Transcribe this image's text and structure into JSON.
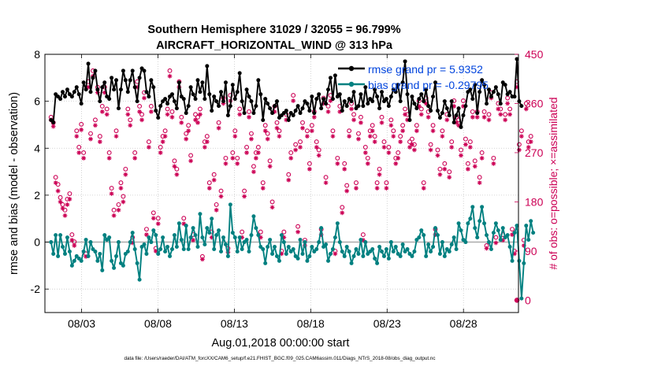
{
  "chart_data": {
    "type": "line",
    "title": "Southern Hemisphere 31029 / 32055 = 96.799%",
    "subtitle": "AIRCRAFT_HORIZONTAL_WIND @ 313 hPa",
    "xlabel": "Aug.01,2018 00:00:00 start",
    "ylabel": "rmse and bias (model - observation)",
    "ylabel_right": "# of obs: o=possible; ×=assimilated",
    "footer": "data file: /Users/raeder/DAI/ATM_forcXX/CAM6_setup/f.e21.FHIST_BGC.f09_025.CAM6assim.011/Diags_NTrS_2018-08/obs_diag_output.nc",
    "xlim": [
      0.6,
      31.6
    ],
    "ylim": [
      -3,
      8
    ],
    "ylim_right": [
      -22.5,
      450
    ],
    "x_ticks": [
      3,
      8,
      13,
      18,
      23,
      28
    ],
    "x_tick_labels": [
      "08/03",
      "08/08",
      "08/13",
      "08/18",
      "08/23",
      "08/28"
    ],
    "y_ticks": [
      -2,
      0,
      2,
      4,
      6,
      8
    ],
    "y_tick_labels": [
      "-2",
      "0",
      "2",
      "4",
      "6",
      "8"
    ],
    "y_ticks_right": [
      0,
      90,
      180,
      270,
      360,
      450
    ],
    "y_tick_labels_right": [
      "0",
      "90",
      "180",
      "270",
      "360",
      "450"
    ],
    "zero_line": 0,
    "legend_position": "top-right",
    "colors": {
      "rmse": "#000000",
      "bias": "#008080",
      "obs": "#cc0055",
      "legend_text": "#0044dd",
      "zero_line": "#aaaaaa"
    },
    "series": [
      {
        "name": "rmse",
        "label": "rmse grand pr = 5.9352",
        "axis": "left",
        "values": [
          5.2,
          5.1,
          6.3,
          6.2,
          6.1,
          6.4,
          6.2,
          6.5,
          6.3,
          6.2,
          6.4,
          6.6,
          6.3,
          5.9,
          6.8,
          6.5,
          7.6,
          6.4,
          7.0,
          7.3,
          6.5,
          6.0,
          6.6,
          6.8,
          6.2,
          6.1,
          7.0,
          6.5,
          6.9,
          5.7,
          6.5,
          7.3,
          6.9,
          6.4,
          6.9,
          7.3,
          6.6,
          6.0,
          7.0,
          7.4,
          7.3,
          6.4,
          6.2,
          6.9,
          6.6,
          5.6,
          5.3,
          5.8,
          6.0,
          6.1,
          5.9,
          6.2,
          6.3,
          6.0,
          5.7,
          6.8,
          6.2,
          6.1,
          5.5,
          5.8,
          6.6,
          6.3,
          6.1,
          6.9,
          6.4,
          6.8,
          6.1,
          7.5,
          6.3,
          5.6,
          6.2,
          6.0,
          5.8,
          6.4,
          6.0,
          6.8,
          5.4,
          5.8,
          6.7,
          6.1,
          6.4,
          7.2,
          6.0,
          5.5,
          6.5,
          6.2,
          6.0,
          5.5,
          5.8,
          6.9,
          6.3,
          5.2,
          6.1,
          5.9,
          5.7,
          5.5,
          5.8,
          6.0,
          5.3,
          5.4,
          5.5,
          5.6,
          5.2,
          5.5,
          5.4,
          5.6,
          5.8,
          5.5,
          5.7,
          6.0,
          5.9,
          5.6,
          6.2,
          5.5,
          6.1,
          6.3,
          5.7,
          6.1,
          5.9,
          6.5,
          7.0,
          6.1,
          7.1,
          6.2,
          6.3,
          5.6,
          6.0,
          5.8,
          6.1,
          6.0,
          6.4,
          5.7,
          5.8,
          6.3,
          5.8,
          6.6,
          5.9,
          6.1,
          6.0,
          6.5,
          6.2,
          5.7,
          6.4,
          6.0,
          6.1,
          5.8,
          6.2,
          6.5,
          6.4,
          6.7,
          6.0,
          6.8,
          7.7,
          6.3,
          5.2,
          6.2,
          5.9,
          5.7,
          6.1,
          6.3,
          6.0,
          6.5,
          5.8,
          5.6,
          6.2,
          6.8,
          5.6,
          5.3,
          5.5,
          6.0,
          5.7,
          5.4,
          6.0,
          5.1,
          5.4,
          5.7,
          4.9,
          5.4,
          5.8,
          6.4,
          6.5,
          6.1,
          6.7,
          5.5,
          6.4,
          6.9,
          6.7,
          5.9,
          6.5,
          6.2,
          6.4,
          6.6,
          6.3,
          5.9,
          6.8,
          6.7,
          6.3,
          6.4,
          6.2,
          6.2,
          7.8,
          6.0,
          5.8
        ]
      },
      {
        "name": "bias",
        "label": "bias grand pr = -0.29795",
        "axis": "left",
        "values": [
          0.0,
          -0.5,
          0.3,
          -0.6,
          0.3,
          -0.2,
          -0.5,
          0.2,
          -0.4,
          -1.0,
          -0.8,
          -0.6,
          -0.7,
          -0.8,
          -0.4,
          0.1,
          -0.6,
          0.0,
          -0.3,
          -0.4,
          -0.8,
          -0.5,
          -1.2,
          0.3,
          0.1,
          0.2,
          -0.8,
          -1.1,
          -0.6,
          0.0,
          -0.9,
          -1.0,
          -0.5,
          -0.4,
          0.0,
          0.4,
          -0.3,
          -0.9,
          -1.6,
          -0.2,
          -0.1,
          -0.5,
          0.2,
          0.0,
          0.5,
          0.3,
          -0.5,
          -0.3,
          0.2,
          -0.4,
          -0.2,
          -0.6,
          -0.3,
          0.3,
          -0.2,
          0.8,
          0.1,
          -0.3,
          0.7,
          -0.3,
          0.2,
          0.6,
          0.3,
          -0.2,
          1.2,
          0.2,
          -0.1,
          0.6,
          0.4,
          1.0,
          -0.3,
          0.3,
          0.5,
          -0.4,
          0.2,
          -0.1,
          -0.6,
          1.6,
          0.4,
          0.2,
          -0.4,
          0.2,
          -0.3,
          0.0,
          0.1,
          -0.4,
          0.3,
          1.1,
          0.6,
          0.3,
          -0.2,
          -0.3,
          -0.9,
          -0.2,
          0.1,
          -0.5,
          -0.2,
          -0.6,
          -0.8,
          0.3,
          0.0,
          -0.5,
          -0.2,
          -0.4,
          -0.3,
          -0.6,
          -0.7,
          0.1,
          -0.5,
          0.0,
          -0.8,
          -0.6,
          -0.2,
          -0.4,
          -0.3,
          0.0,
          0.6,
          -0.2,
          -0.1,
          -0.8,
          -0.5,
          -0.3,
          0.2,
          0.8,
          0.0,
          -0.4,
          -0.6,
          -0.2,
          -0.4,
          -0.9,
          -0.6,
          -0.3,
          -0.5,
          0.1,
          -0.6,
          0.0,
          -0.5,
          -0.4,
          -0.3,
          -0.7,
          -0.9,
          -0.2,
          -0.4,
          -0.6,
          -0.3,
          -0.7,
          0.0,
          -0.4,
          -0.2,
          -0.5,
          -0.6,
          -0.1,
          -0.4,
          -0.3,
          -0.5,
          -0.6,
          -0.4,
          0.1,
          0.2,
          0.5,
          0.3,
          -0.6,
          -0.1,
          -0.4,
          -0.2,
          0.6,
          0.3,
          -0.5,
          0.0,
          -0.6,
          -0.3,
          -0.4,
          -0.1,
          0.2,
          -0.3,
          0.8,
          0.5,
          0.1,
          0.0,
          0.8,
          1.0,
          1.5,
          0.6,
          0.2,
          0.9,
          1.5,
          0.8,
          0.3,
          0.0,
          -0.3,
          0.4,
          0.8,
          0.5,
          0.1,
          0.6,
          0.2,
          0.3,
          -0.2,
          -0.8,
          0.4,
          0.7,
          -0.8,
          -2.4,
          -0.9,
          0.7,
          0.1,
          0.9,
          0.4
        ]
      },
      {
        "name": "obs_possible",
        "label": "o=possible",
        "axis": "right",
        "values": [
          335,
          325,
          225,
          212,
          188,
          175,
          165,
          185,
          195,
          120,
          107,
          310,
          280,
          322,
          270,
          85,
          400,
          305,
          420,
          330,
          390,
          300,
          355,
          390,
          350,
          270,
          205,
          165,
          310,
          175,
          215,
          190,
          240,
          350,
          330,
          115,
          270,
          400,
          355,
          340,
          380,
          130,
          290,
          355,
          160,
          95,
          150,
          280,
          300,
          310,
          350,
          420,
          345,
          255,
          240,
          400,
          335,
          150,
          305,
          320,
          265,
          120,
          340,
          335,
          350,
          80,
          290,
          300,
          215,
          125,
          230,
          175,
          325,
          200,
          370,
          260,
          95,
          375,
          270,
          310,
          260,
          350,
          125,
          200,
          280,
          345,
          305,
          245,
          270,
          280,
          125,
          215,
          320,
          305,
          255,
          180,
          355,
          325,
          310,
          90,
          125,
          340,
          230,
          270,
          375,
          285,
          135,
          290,
          325,
          110,
          310,
          250,
          320,
          345,
          290,
          275,
          130,
          370,
          225,
          355,
          375,
          310,
          90,
          260,
          355,
          170,
          250,
          210,
          310,
          360,
          340,
          215,
          305,
          335,
          120,
          280,
          260,
          310,
          320,
          300,
          215,
          240,
          335,
          290,
          215,
          280,
          330,
          310,
          260,
          270,
          300,
          320,
          350,
          340,
          290,
          295,
          285,
          320,
          365,
          350,
          215,
          370,
          345,
          285,
          320,
          130,
          275,
          240,
          310,
          250,
          340,
          235,
          290,
          365,
          335,
          330,
          275,
          365,
          295,
          250,
          290,
          345,
          255,
          345,
          225,
          270,
          345,
          100,
          340,
          380,
          260,
          115,
          360,
          350,
          120,
          340,
          370,
          350,
          130,
          90,
          400,
          285,
          310,
          110,
          360,
          290,
          300
        ]
      },
      {
        "name": "obs_assimilated",
        "label": "×=assimilated",
        "axis": "right",
        "values": [
          330,
          318,
          215,
          200,
          180,
          168,
          155,
          175,
          185,
          110,
          100,
          300,
          270,
          312,
          260,
          80,
          390,
          295,
          410,
          320,
          380,
          290,
          345,
          380,
          340,
          260,
          195,
          155,
          300,
          165,
          205,
          180,
          230,
          340,
          320,
          105,
          260,
          390,
          345,
          330,
          370,
          120,
          280,
          345,
          150,
          90,
          140,
          270,
          290,
          300,
          340,
          410,
          335,
          245,
          230,
          390,
          325,
          140,
          295,
          310,
          255,
          110,
          330,
          325,
          340,
          75,
          280,
          290,
          205,
          115,
          220,
          165,
          315,
          190,
          360,
          250,
          88,
          365,
          260,
          300,
          250,
          340,
          115,
          190,
          270,
          335,
          295,
          235,
          260,
          270,
          115,
          205,
          310,
          295,
          245,
          170,
          345,
          315,
          300,
          85,
          115,
          330,
          220,
          260,
          365,
          275,
          125,
          280,
          315,
          100,
          300,
          240,
          310,
          335,
          280,
          265,
          120,
          360,
          215,
          345,
          365,
          300,
          85,
          250,
          345,
          160,
          240,
          200,
          300,
          350,
          330,
          205,
          295,
          325,
          110,
          270,
          250,
          300,
          310,
          290,
          205,
          230,
          325,
          280,
          205,
          270,
          320,
          300,
          250,
          260,
          290,
          310,
          340,
          330,
          280,
          285,
          275,
          310,
          355,
          340,
          205,
          360,
          335,
          275,
          310,
          120,
          265,
          230,
          300,
          240,
          330,
          225,
          280,
          355,
          325,
          320,
          265,
          355,
          285,
          240,
          280,
          335,
          245,
          335,
          215,
          260,
          335,
          95,
          330,
          370,
          250,
          105,
          350,
          340,
          110,
          330,
          360,
          340,
          120,
          85,
          390,
          275,
          300,
          100,
          350,
          280,
          290
        ]
      }
    ],
    "extra_points": [
      {
        "series": "obs_possible",
        "x": 31.5,
        "value": 0
      },
      {
        "series": "obs_assimilated",
        "x": 31.5,
        "value": 0
      }
    ]
  }
}
